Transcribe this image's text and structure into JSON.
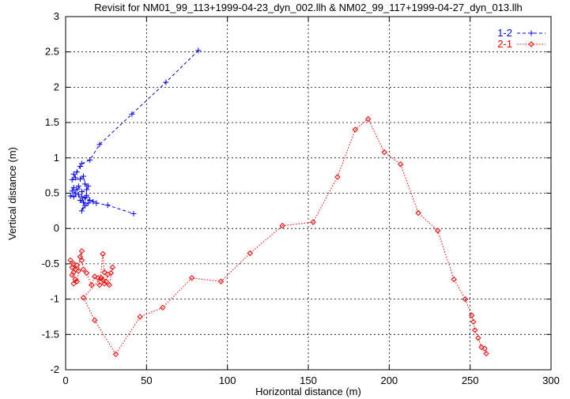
{
  "chart_data": {
    "type": "scatter",
    "title": "Revisit for NM01_99_113+1999-04-23_dyn_002.llh & NM02_99_117+1999-04-27_dyn_013.llh",
    "xlabel": "Horizontal distance (m)",
    "ylabel": "Vertical distance (m)",
    "xlim": [
      0,
      300
    ],
    "ylim": [
      -2,
      3
    ],
    "xticks": [
      0,
      50,
      100,
      150,
      200,
      250,
      300
    ],
    "yticks": [
      -2,
      -1.5,
      -1,
      -0.5,
      0,
      0.5,
      1,
      1.5,
      2,
      2.5,
      3
    ],
    "grid": true,
    "legend_position": "top-right",
    "series": [
      {
        "name": "1-2",
        "color": "#0000ff",
        "marker": "plus",
        "line": "dashed",
        "points": [
          [
            82,
            2.52
          ],
          [
            62,
            2.07
          ],
          [
            41,
            1.62
          ],
          [
            21,
            1.19
          ],
          [
            15,
            0.97
          ],
          [
            10,
            0.92
          ],
          [
            9,
            0.88
          ],
          [
            7,
            0.8
          ],
          [
            5,
            0.77
          ],
          [
            6,
            0.72
          ],
          [
            4,
            0.69
          ],
          [
            9,
            0.7
          ],
          [
            11,
            0.74
          ],
          [
            12,
            0.63
          ],
          [
            14,
            0.6
          ],
          [
            13,
            0.55
          ],
          [
            10,
            0.52
          ],
          [
            8,
            0.6
          ],
          [
            7,
            0.55
          ],
          [
            5,
            0.58
          ],
          [
            4,
            0.53
          ],
          [
            6,
            0.5
          ],
          [
            3,
            0.46
          ],
          [
            5,
            0.45
          ],
          [
            8,
            0.48
          ],
          [
            9,
            0.4
          ],
          [
            11,
            0.37
          ],
          [
            10,
            0.45
          ],
          [
            12,
            0.43
          ],
          [
            15,
            0.4
          ],
          [
            14,
            0.36
          ],
          [
            12,
            0.32
          ],
          [
            10,
            0.25
          ],
          [
            13,
            0.47
          ],
          [
            17,
            0.38
          ],
          [
            19,
            0.36
          ],
          [
            26,
            0.33
          ],
          [
            42,
            0.21
          ]
        ]
      },
      {
        "name": "2-1",
        "color": "#ff0000",
        "marker": "diamond",
        "line": "dotted",
        "points": [
          [
            4,
            -0.55
          ],
          [
            3,
            -0.45
          ],
          [
            5,
            -0.5
          ],
          [
            6,
            -0.58
          ],
          [
            7,
            -0.52
          ],
          [
            5,
            -0.62
          ],
          [
            4,
            -0.66
          ],
          [
            6,
            -0.72
          ],
          [
            5,
            -0.78
          ],
          [
            7,
            -0.75
          ],
          [
            8,
            -0.6
          ],
          [
            9,
            -0.4
          ],
          [
            10,
            -0.32
          ],
          [
            10,
            -0.45
          ],
          [
            11,
            -0.58
          ],
          [
            13,
            -0.63
          ],
          [
            16,
            -0.8
          ],
          [
            18,
            -0.68
          ],
          [
            20,
            -0.7
          ],
          [
            21,
            -0.8
          ],
          [
            23,
            -0.36
          ],
          [
            24,
            -0.62
          ],
          [
            23,
            -0.73
          ],
          [
            25,
            -0.75
          ],
          [
            26,
            -0.65
          ],
          [
            28,
            -0.63
          ],
          [
            29,
            -0.55
          ],
          [
            27,
            -0.8
          ],
          [
            24,
            -0.78
          ],
          [
            22,
            -0.7
          ],
          [
            11,
            -0.98
          ],
          [
            18,
            -1.3
          ],
          [
            31,
            -1.78
          ],
          [
            46,
            -1.25
          ],
          [
            60,
            -1.12
          ],
          [
            78,
            -0.7
          ],
          [
            96,
            -0.75
          ],
          [
            114,
            -0.35
          ],
          [
            134,
            0.04
          ],
          [
            153,
            0.09
          ],
          [
            168,
            0.73
          ],
          [
            179,
            1.4
          ],
          [
            187,
            1.55
          ],
          [
            197,
            1.08
          ],
          [
            207,
            0.91
          ],
          [
            218,
            0.22
          ],
          [
            230,
            -0.03
          ],
          [
            240,
            -0.72
          ],
          [
            247,
            -1.0
          ],
          [
            251,
            -1.23
          ],
          [
            252,
            -1.32
          ],
          [
            253,
            -1.44
          ],
          [
            255,
            -1.55
          ],
          [
            257,
            -1.68
          ],
          [
            259,
            -1.7
          ],
          [
            260,
            -1.77
          ]
        ]
      }
    ]
  }
}
